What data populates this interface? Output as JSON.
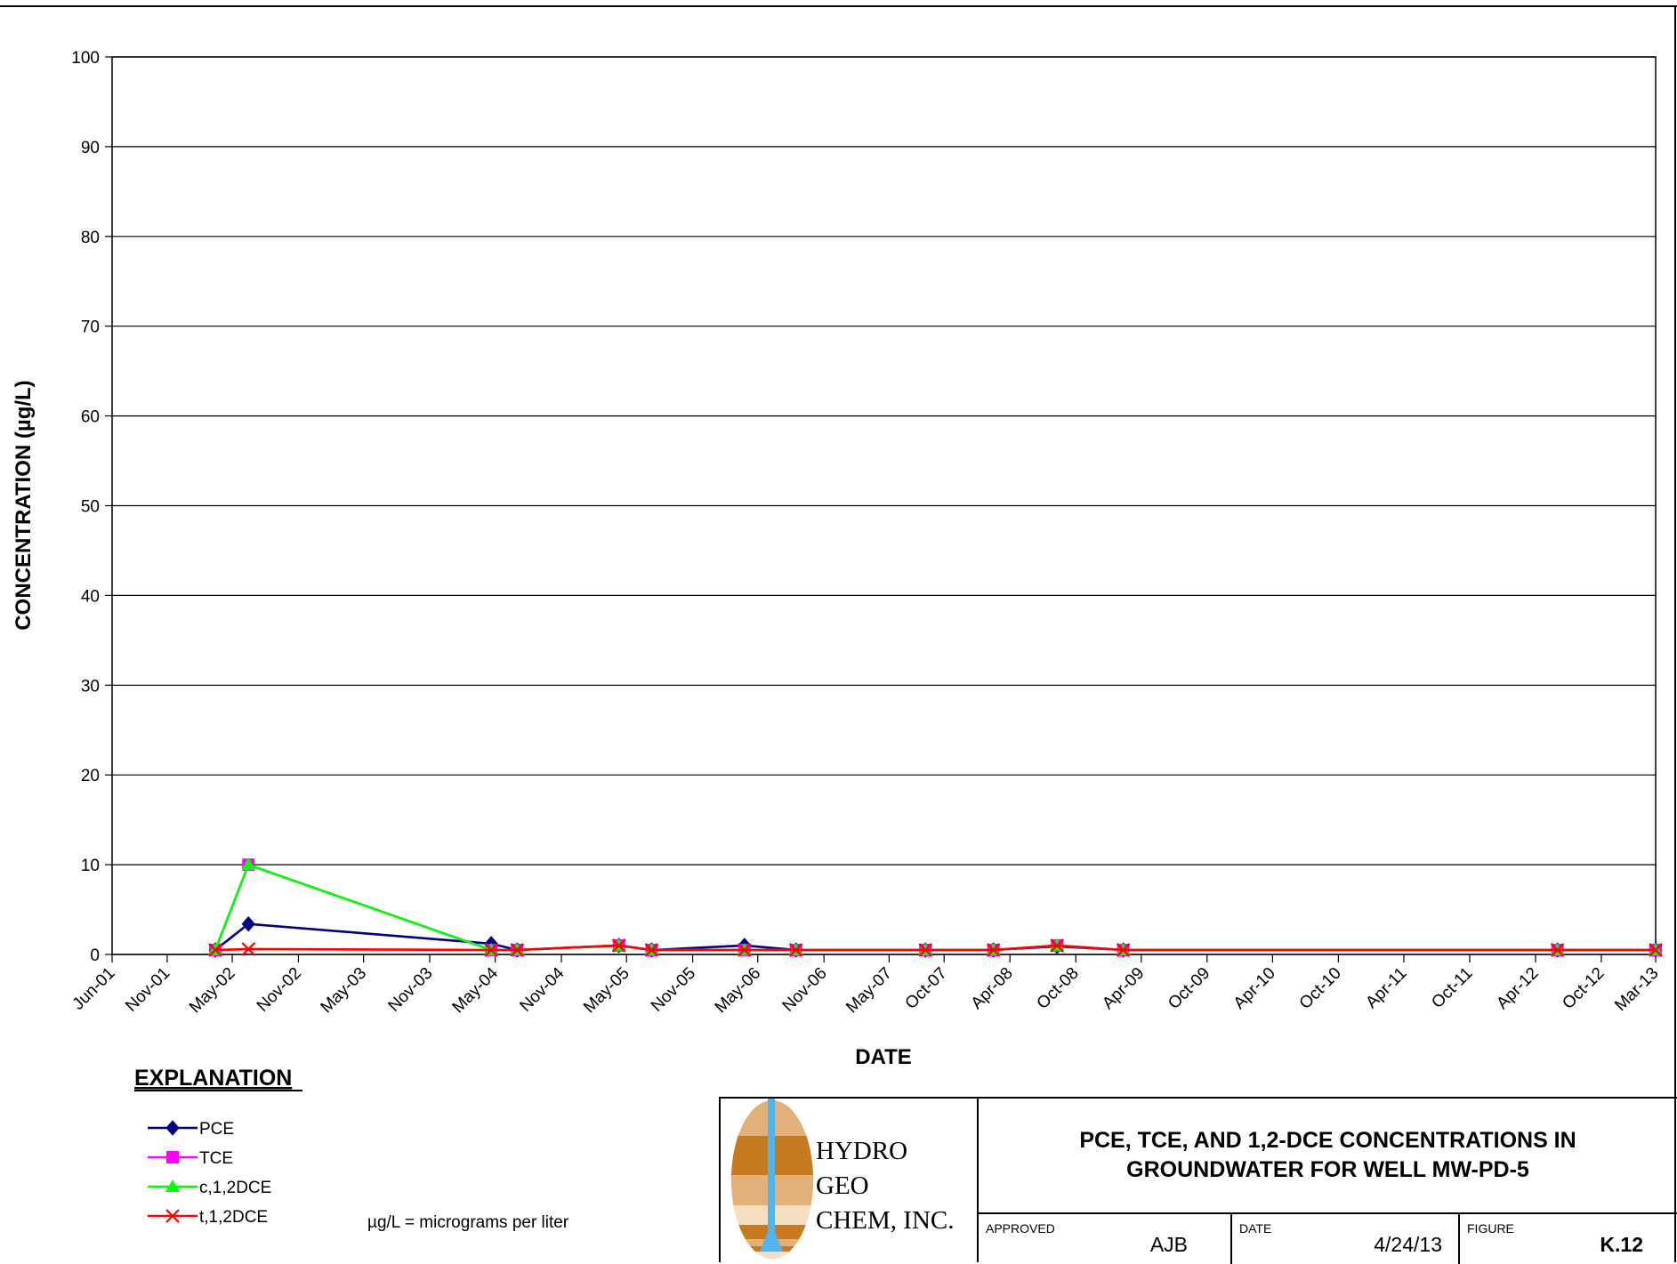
{
  "chart_data": {
    "type": "line",
    "title": "PCE, TCE, AND 1,2-DCE CONCENTRATIONS IN\nGROUNDWATER FOR WELL MW-PD-5",
    "xlabel": "DATE",
    "ylabel": "CONCENTRATION (µg/L)",
    "ylim": [
      0,
      100
    ],
    "yticks": [
      0,
      10,
      20,
      30,
      40,
      50,
      60,
      70,
      80,
      90,
      100
    ],
    "xlim": [
      "2001-06-01",
      "2013-03-01"
    ],
    "xtick_dates": [
      "2001-06-01",
      "2001-11-01",
      "2002-05-01",
      "2002-11-01",
      "2003-05-01",
      "2003-11-01",
      "2004-05-01",
      "2004-11-01",
      "2005-05-01",
      "2005-11-01",
      "2006-05-01",
      "2006-11-01",
      "2007-05-01",
      "2007-10-01",
      "2008-04-01",
      "2008-10-01",
      "2009-04-01",
      "2009-10-01",
      "2010-04-01",
      "2010-10-01",
      "2011-04-01",
      "2011-10-01",
      "2012-04-01",
      "2012-10-01",
      "2013-03-01"
    ],
    "xtick_labels": [
      "Jun-01",
      "Nov-01",
      "May-02",
      "Nov-02",
      "May-03",
      "Nov-03",
      "May-04",
      "Nov-04",
      "May-05",
      "Nov-05",
      "May-06",
      "Nov-06",
      "May-07",
      "Oct-07",
      "Apr-08",
      "Oct-08",
      "Apr-09",
      "Oct-09",
      "Apr-10",
      "Oct-10",
      "Apr-11",
      "Oct-11",
      "Apr-12",
      "Oct-12",
      "Mar-13"
    ],
    "gridlines": "horizontal",
    "legend_position": "bottom-left",
    "series": [
      {
        "name": "PCE",
        "color": "#000080",
        "marker": "diamond",
        "points": [
          {
            "x": "2002-03-15",
            "y": 0.5
          },
          {
            "x": "2002-06-15",
            "y": 3.4
          },
          {
            "x": "2004-04-20",
            "y": 1.2
          },
          {
            "x": "2004-07-01",
            "y": 0.5
          },
          {
            "x": "2005-04-10",
            "y": 1.0
          },
          {
            "x": "2005-07-10",
            "y": 0.5
          },
          {
            "x": "2006-03-25",
            "y": 1.0
          },
          {
            "x": "2006-08-15",
            "y": 0.5
          },
          {
            "x": "2007-08-10",
            "y": 0.5
          },
          {
            "x": "2008-02-15",
            "y": 0.5
          },
          {
            "x": "2008-08-10",
            "y": 0.9
          },
          {
            "x": "2009-02-10",
            "y": 0.5
          },
          {
            "x": "2012-06-01",
            "y": 0.5
          },
          {
            "x": "2013-03-01",
            "y": 0.5
          }
        ]
      },
      {
        "name": "TCE",
        "color": "#FF00FF",
        "marker": "square",
        "points": [
          {
            "x": "2002-03-15",
            "y": 0.5
          },
          {
            "x": "2002-06-15",
            "y": 10.0
          },
          {
            "x": "2004-04-20",
            "y": 0.5
          },
          {
            "x": "2004-07-01",
            "y": 0.5
          },
          {
            "x": "2005-04-10",
            "y": 1.0
          },
          {
            "x": "2005-07-10",
            "y": 0.5
          },
          {
            "x": "2006-03-25",
            "y": 0.5
          },
          {
            "x": "2006-08-15",
            "y": 0.5
          },
          {
            "x": "2007-08-10",
            "y": 0.5
          },
          {
            "x": "2008-02-15",
            "y": 0.5
          },
          {
            "x": "2008-08-10",
            "y": 1.0
          },
          {
            "x": "2009-02-10",
            "y": 0.5
          },
          {
            "x": "2012-06-01",
            "y": 0.5
          },
          {
            "x": "2013-03-01",
            "y": 0.5
          }
        ]
      },
      {
        "name": "c,1,2DCE",
        "color": "#00FF00",
        "marker": "triangle",
        "points": [
          {
            "x": "2002-03-15",
            "y": 0.5
          },
          {
            "x": "2002-06-15",
            "y": 10.0
          },
          {
            "x": "2004-04-20",
            "y": 0.5
          },
          {
            "x": "2004-07-01",
            "y": 0.5
          },
          {
            "x": "2005-04-10",
            "y": 1.0
          },
          {
            "x": "2005-07-10",
            "y": 0.5
          },
          {
            "x": "2006-03-25",
            "y": 0.5
          },
          {
            "x": "2006-08-15",
            "y": 0.5
          },
          {
            "x": "2007-08-10",
            "y": 0.5
          },
          {
            "x": "2008-02-15",
            "y": 0.5
          },
          {
            "x": "2008-08-10",
            "y": 1.0
          },
          {
            "x": "2009-02-10",
            "y": 0.5
          },
          {
            "x": "2012-06-01",
            "y": 0.5
          },
          {
            "x": "2013-03-01",
            "y": 0.5
          }
        ]
      },
      {
        "name": "t,1,2DCE",
        "color": "#FF0000",
        "marker": "x",
        "points": [
          {
            "x": "2002-03-15",
            "y": 0.5
          },
          {
            "x": "2002-06-15",
            "y": 0.6
          },
          {
            "x": "2004-04-20",
            "y": 0.5
          },
          {
            "x": "2004-07-01",
            "y": 0.5
          },
          {
            "x": "2005-04-10",
            "y": 1.0
          },
          {
            "x": "2005-07-10",
            "y": 0.5
          },
          {
            "x": "2006-03-25",
            "y": 0.5
          },
          {
            "x": "2006-08-15",
            "y": 0.5
          },
          {
            "x": "2007-08-10",
            "y": 0.5
          },
          {
            "x": "2008-02-15",
            "y": 0.5
          },
          {
            "x": "2008-08-10",
            "y": 1.0
          },
          {
            "x": "2009-02-10",
            "y": 0.5
          },
          {
            "x": "2012-06-01",
            "y": 0.5
          },
          {
            "x": "2013-03-01",
            "y": 0.5
          }
        ]
      }
    ]
  },
  "explanation": {
    "heading": "EXPLANATION",
    "units_note": "µg/L = micrograms per liter"
  },
  "title_block": {
    "company": "HYDRO\nGEO\nCHEM, INC.",
    "approved_label": "APPROVED",
    "approved_value": "AJB",
    "date_label": "DATE",
    "date_value": "4/24/13",
    "figure_label": "FIGURE",
    "figure_value": "K.12"
  }
}
